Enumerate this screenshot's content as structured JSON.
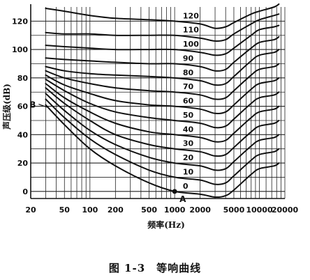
{
  "chart_data": {
    "type": "line",
    "title": "",
    "xlabel": "频率(Hz)",
    "ylabel": "声压级(dB)",
    "x_scale": "log",
    "xlim": [
      20,
      20000
    ],
    "ylim": [
      -5,
      130
    ],
    "x_ticks": [
      20,
      50,
      100,
      200,
      500,
      1000,
      2000,
      5000,
      10000,
      20000
    ],
    "x_tick_labels": [
      "20",
      "50",
      "100",
      "200",
      "500",
      "1000",
      "2000",
      "5000",
      "10000",
      "20000"
    ],
    "y_ticks": [
      0,
      20,
      40,
      60,
      80,
      100,
      120
    ],
    "y_tick_labels": [
      "0",
      "20",
      "40",
      "60",
      "80",
      "100",
      "120"
    ],
    "grid": true,
    "curve_labels": [
      "120",
      "110",
      "100",
      "90",
      "80",
      "70",
      "60",
      "50",
      "40",
      "30",
      "20",
      "10",
      "0"
    ],
    "annotations": [
      {
        "text": "A",
        "x": 1000,
        "y": 0
      },
      {
        "text": "B",
        "x": 30,
        "y": 60
      }
    ],
    "series": [
      {
        "name": "0",
        "x": [
          30,
          50,
          100,
          200,
          500,
          1000,
          2000,
          3000,
          4000,
          5000,
          8000,
          10000,
          15000,
          17000
        ],
        "y": [
          61,
          47,
          30,
          18,
          6,
          0,
          -2,
          -4,
          -3,
          1,
          12,
          16,
          18,
          20
        ]
      },
      {
        "name": "10",
        "x": [
          30,
          50,
          100,
          200,
          500,
          1000,
          2000,
          3000,
          4000,
          5000,
          8000,
          10000,
          15000,
          17000
        ],
        "y": [
          65,
          52,
          37,
          26,
          15,
          10,
          8,
          5,
          6,
          11,
          22,
          26,
          28,
          30
        ]
      },
      {
        "name": "20",
        "x": [
          30,
          50,
          100,
          200,
          500,
          1000,
          2000,
          3000,
          4000,
          5000,
          8000,
          10000,
          15000,
          17000
        ],
        "y": [
          69,
          57,
          43,
          33,
          24,
          20,
          18,
          15,
          16,
          21,
          32,
          36,
          38,
          40
        ]
      },
      {
        "name": "30",
        "x": [
          30,
          50,
          100,
          200,
          500,
          1000,
          2000,
          3000,
          4000,
          5000,
          8000,
          10000,
          15000,
          17000
        ],
        "y": [
          73,
          62,
          50,
          40,
          33,
          30,
          28,
          25,
          26,
          31,
          42,
          46,
          48,
          50
        ]
      },
      {
        "name": "40",
        "x": [
          30,
          50,
          100,
          200,
          500,
          1000,
          2000,
          3000,
          4000,
          5000,
          8000,
          10000,
          15000,
          17000
        ],
        "y": [
          76,
          66,
          56,
          48,
          42,
          40,
          38,
          35,
          36,
          41,
          52,
          56,
          58,
          60
        ]
      },
      {
        "name": "50",
        "x": [
          30,
          50,
          100,
          200,
          500,
          1000,
          2000,
          3000,
          4000,
          5000,
          8000,
          10000,
          15000,
          17000
        ],
        "y": [
          79,
          71,
          62,
          56,
          52,
          50,
          48,
          45,
          46,
          51,
          62,
          66,
          68,
          70
        ]
      },
      {
        "name": "60",
        "x": [
          30,
          50,
          100,
          200,
          500,
          1000,
          2000,
          3000,
          4000,
          5000,
          8000,
          10000,
          15000,
          17000
        ],
        "y": [
          82,
          75,
          69,
          64,
          61,
          60,
          58,
          55,
          56,
          61,
          72,
          76,
          78,
          80
        ]
      },
      {
        "name": "70",
        "x": [
          30,
          50,
          100,
          200,
          500,
          1000,
          2000,
          3000,
          4000,
          5000,
          8000,
          10000,
          15000,
          17000
        ],
        "y": [
          85,
          80,
          76,
          73,
          71,
          70,
          68,
          65,
          66,
          71,
          82,
          86,
          88,
          90
        ]
      },
      {
        "name": "80",
        "x": [
          30,
          50,
          100,
          200,
          500,
          1000,
          2000,
          3000,
          4000,
          5000,
          8000,
          10000,
          15000,
          17000
        ],
        "y": [
          88,
          85,
          83,
          82,
          81,
          80,
          78,
          75,
          76,
          81,
          92,
          96,
          98,
          100
        ]
      },
      {
        "name": "90",
        "x": [
          30,
          50,
          100,
          200,
          500,
          1000,
          2000,
          3000,
          4000,
          5000,
          8000,
          10000,
          15000,
          17000
        ],
        "y": [
          94,
          93,
          92,
          91,
          90,
          90,
          88,
          85,
          86,
          91,
          101,
          105,
          107,
          109
        ]
      },
      {
        "name": "100",
        "x": [
          30,
          50,
          100,
          200,
          500,
          1000,
          2000,
          3000,
          4000,
          5000,
          8000,
          10000,
          15000,
          17000
        ],
        "y": [
          103,
          102,
          101,
          100,
          100,
          100,
          98,
          96,
          97,
          101,
          110,
          114,
          116,
          117
        ]
      },
      {
        "name": "110",
        "x": [
          30,
          50,
          100,
          200,
          500,
          1000,
          2000,
          3000,
          4000,
          5000,
          8000,
          10000,
          15000,
          17000
        ],
        "y": [
          112,
          111,
          111,
          110,
          110,
          110,
          108,
          106,
          107,
          111,
          118,
          121,
          124,
          125
        ]
      },
      {
        "name": "120",
        "x": [
          30,
          50,
          100,
          200,
          500,
          1000,
          2000,
          3000,
          4000,
          5000,
          8000,
          10000,
          15000,
          17000
        ],
        "y": [
          129,
          127,
          124,
          122,
          121,
          120,
          118,
          115,
          116,
          119,
          125,
          127,
          130,
          132
        ]
      }
    ]
  },
  "caption": {
    "figure_number": "图 1-3",
    "title": "等响曲线"
  }
}
